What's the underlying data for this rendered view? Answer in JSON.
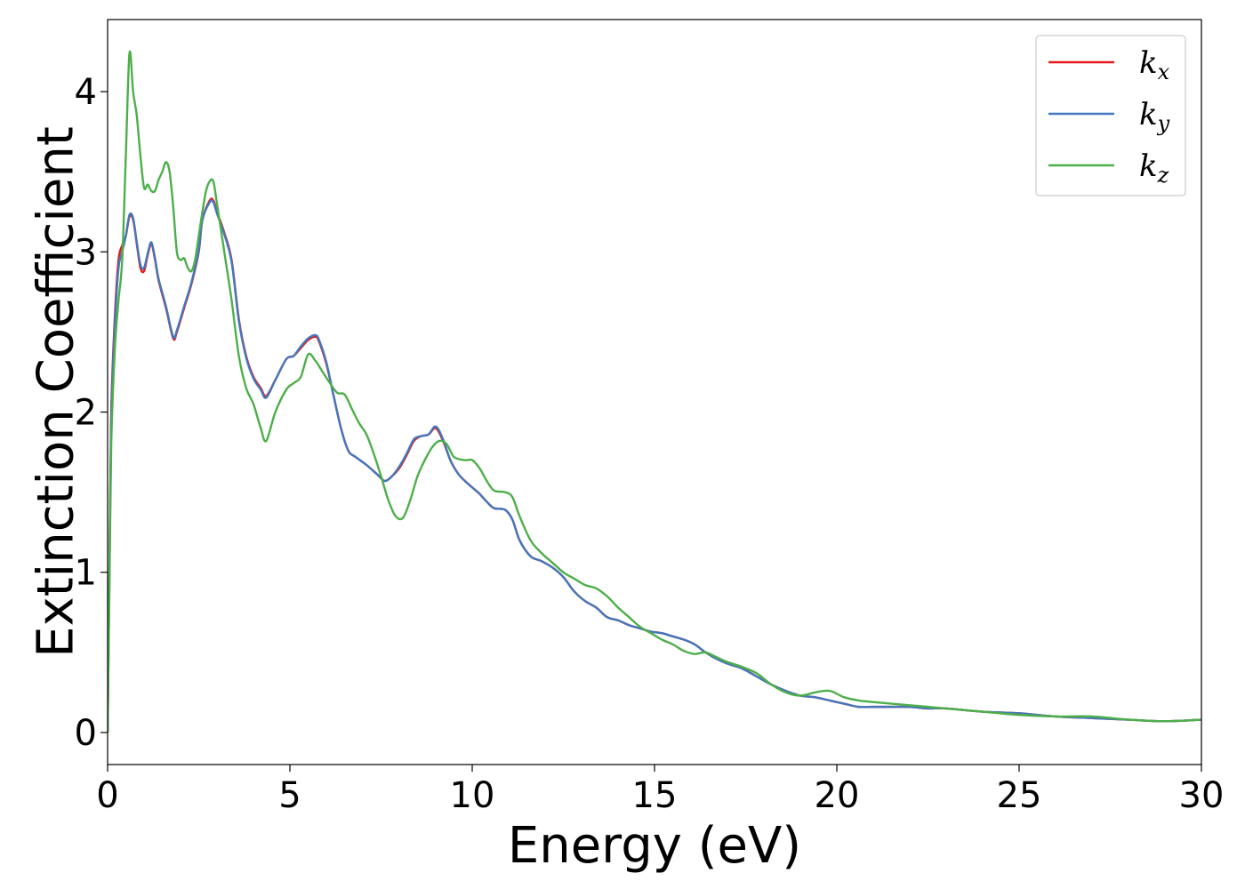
{
  "chart_data": {
    "type": "line",
    "title": "",
    "xlabel": "Energy (eV)",
    "ylabel": "Extinction Coefficient",
    "xlim": [
      0,
      30
    ],
    "ylim": [
      -0.2,
      4.45
    ],
    "xticks": [
      "0",
      "5",
      "10",
      "15",
      "20",
      "25",
      "30"
    ],
    "yticks": [
      "0",
      "1",
      "2",
      "3",
      "4"
    ],
    "grid": false,
    "legend_position": "top-right",
    "series": [
      {
        "name": "k_x",
        "label": {
          "symbol": "k",
          "subscript": "x"
        },
        "color": "#e41a1c",
        "x": [
          0.0,
          0.05,
          0.1,
          0.2,
          0.3,
          0.4,
          0.5,
          0.6,
          0.7,
          0.8,
          0.9,
          1.0,
          1.1,
          1.2,
          1.3,
          1.4,
          1.6,
          1.8,
          1.9,
          2.1,
          2.3,
          2.5,
          2.6,
          2.8,
          2.9,
          3.0,
          3.2,
          3.4,
          3.6,
          3.8,
          4.0,
          4.2,
          4.35,
          4.6,
          4.9,
          5.1,
          5.3,
          5.5,
          5.7,
          5.8,
          6.0,
          6.2,
          6.4,
          6.6,
          6.8,
          7.1,
          7.4,
          7.6,
          7.8,
          8.0,
          8.2,
          8.4,
          8.6,
          8.8,
          9.0,
          9.2,
          9.4,
          9.6,
          9.8,
          10.0,
          10.2,
          10.4,
          10.6,
          10.9,
          11.1,
          11.3,
          11.6,
          11.9,
          12.2,
          12.5,
          12.8,
          13.1,
          13.4,
          13.7,
          14.0,
          14.3,
          14.6,
          14.9,
          15.2,
          15.5,
          15.8,
          16.1,
          16.4,
          16.7,
          17.0,
          17.4,
          17.8,
          18.2,
          18.6,
          19.0,
          19.4,
          19.8,
          20.2,
          20.6,
          21.0,
          21.5,
          22.0,
          22.5,
          23.0,
          24.0,
          25.0,
          26.0,
          27.0,
          28.0,
          29.0,
          30.0
        ],
        "y": [
          0.0,
          1.0,
          2.0,
          2.6,
          2.95,
          3.04,
          3.1,
          3.22,
          3.2,
          3.05,
          2.9,
          2.88,
          2.98,
          3.05,
          2.95,
          2.82,
          2.65,
          2.46,
          2.5,
          2.65,
          2.8,
          3.0,
          3.2,
          3.32,
          3.32,
          3.25,
          3.12,
          2.95,
          2.58,
          2.35,
          2.22,
          2.15,
          2.1,
          2.2,
          2.33,
          2.35,
          2.4,
          2.45,
          2.47,
          2.44,
          2.3,
          2.1,
          1.9,
          1.76,
          1.72,
          1.67,
          1.61,
          1.57,
          1.6,
          1.65,
          1.73,
          1.82,
          1.85,
          1.86,
          1.9,
          1.82,
          1.7,
          1.62,
          1.57,
          1.53,
          1.49,
          1.44,
          1.4,
          1.39,
          1.33,
          1.2,
          1.1,
          1.07,
          1.03,
          0.97,
          0.88,
          0.82,
          0.78,
          0.72,
          0.7,
          0.67,
          0.65,
          0.63,
          0.62,
          0.6,
          0.58,
          0.55,
          0.5,
          0.46,
          0.43,
          0.4,
          0.35,
          0.3,
          0.26,
          0.23,
          0.22,
          0.2,
          0.18,
          0.16,
          0.16,
          0.16,
          0.16,
          0.15,
          0.15,
          0.13,
          0.12,
          0.1,
          0.09,
          0.08,
          0.07,
          0.08
        ]
      },
      {
        "name": "k_y",
        "label": {
          "symbol": "k",
          "subscript": "y"
        },
        "color": "#4477bb",
        "x": [
          0.0,
          0.05,
          0.1,
          0.2,
          0.3,
          0.4,
          0.5,
          0.6,
          0.7,
          0.8,
          0.9,
          1.0,
          1.1,
          1.2,
          1.3,
          1.4,
          1.6,
          1.8,
          1.9,
          2.1,
          2.3,
          2.5,
          2.6,
          2.8,
          2.9,
          3.0,
          3.2,
          3.4,
          3.6,
          3.8,
          4.0,
          4.2,
          4.35,
          4.6,
          4.9,
          5.1,
          5.3,
          5.5,
          5.7,
          5.8,
          6.0,
          6.2,
          6.4,
          6.6,
          6.8,
          7.1,
          7.4,
          7.6,
          7.8,
          8.0,
          8.2,
          8.4,
          8.6,
          8.8,
          9.0,
          9.2,
          9.4,
          9.6,
          9.8,
          10.0,
          10.2,
          10.4,
          10.6,
          10.9,
          11.1,
          11.3,
          11.6,
          11.9,
          12.2,
          12.5,
          12.8,
          13.1,
          13.4,
          13.7,
          14.0,
          14.3,
          14.6,
          14.9,
          15.2,
          15.5,
          15.8,
          16.1,
          16.4,
          16.7,
          17.0,
          17.4,
          17.8,
          18.2,
          18.6,
          19.0,
          19.4,
          19.8,
          20.2,
          20.6,
          21.0,
          21.5,
          22.0,
          22.5,
          23.0,
          24.0,
          25.0,
          26.0,
          27.0,
          28.0,
          29.0,
          30.0
        ],
        "y": [
          0.0,
          1.0,
          1.95,
          2.55,
          2.9,
          3.0,
          3.1,
          3.23,
          3.21,
          3.06,
          2.92,
          2.9,
          2.99,
          3.06,
          2.96,
          2.83,
          2.66,
          2.47,
          2.51,
          2.66,
          2.81,
          3.01,
          3.2,
          3.31,
          3.31,
          3.24,
          3.11,
          2.94,
          2.57,
          2.34,
          2.21,
          2.14,
          2.09,
          2.2,
          2.33,
          2.35,
          2.41,
          2.46,
          2.48,
          2.45,
          2.31,
          2.1,
          1.9,
          1.76,
          1.72,
          1.67,
          1.61,
          1.57,
          1.6,
          1.66,
          1.74,
          1.83,
          1.85,
          1.86,
          1.91,
          1.83,
          1.7,
          1.62,
          1.57,
          1.53,
          1.49,
          1.44,
          1.4,
          1.39,
          1.33,
          1.2,
          1.1,
          1.07,
          1.03,
          0.97,
          0.88,
          0.82,
          0.78,
          0.72,
          0.7,
          0.67,
          0.65,
          0.63,
          0.62,
          0.6,
          0.58,
          0.55,
          0.5,
          0.46,
          0.43,
          0.4,
          0.35,
          0.3,
          0.26,
          0.23,
          0.22,
          0.2,
          0.18,
          0.16,
          0.16,
          0.16,
          0.16,
          0.15,
          0.15,
          0.13,
          0.12,
          0.1,
          0.09,
          0.08,
          0.07,
          0.08
        ]
      },
      {
        "name": "k_z",
        "label": {
          "symbol": "k",
          "subscript": "z"
        },
        "color": "#4daf4a",
        "x": [
          0.0,
          0.05,
          0.1,
          0.2,
          0.3,
          0.4,
          0.5,
          0.6,
          0.7,
          0.8,
          0.9,
          1.0,
          1.1,
          1.2,
          1.3,
          1.4,
          1.5,
          1.6,
          1.7,
          1.8,
          1.9,
          2.0,
          2.1,
          2.2,
          2.3,
          2.4,
          2.5,
          2.6,
          2.7,
          2.8,
          2.9,
          3.0,
          3.2,
          3.4,
          3.6,
          3.8,
          4.0,
          4.2,
          4.35,
          4.6,
          4.9,
          5.1,
          5.3,
          5.5,
          5.7,
          5.9,
          6.1,
          6.3,
          6.5,
          6.7,
          6.9,
          7.1,
          7.3,
          7.5,
          7.7,
          7.9,
          8.1,
          8.3,
          8.5,
          8.7,
          8.9,
          9.1,
          9.3,
          9.5,
          9.8,
          10.0,
          10.2,
          10.4,
          10.6,
          10.9,
          11.1,
          11.3,
          11.6,
          11.9,
          12.2,
          12.5,
          12.8,
          13.1,
          13.4,
          13.7,
          14.0,
          14.3,
          14.6,
          14.9,
          15.2,
          15.5,
          15.8,
          16.1,
          16.4,
          16.7,
          17.0,
          17.4,
          17.8,
          18.2,
          18.6,
          19.0,
          19.4,
          19.8,
          20.2,
          20.6,
          21.0,
          21.5,
          22.0,
          22.5,
          23.0,
          24.0,
          25.0,
          26.0,
          27.0,
          28.0,
          29.0,
          30.0
        ],
        "y": [
          0.0,
          0.9,
          1.8,
          2.4,
          2.7,
          2.95,
          3.6,
          4.24,
          4.0,
          3.85,
          3.6,
          3.4,
          3.42,
          3.38,
          3.38,
          3.45,
          3.5,
          3.56,
          3.5,
          3.28,
          3.0,
          2.95,
          2.96,
          2.9,
          2.88,
          2.95,
          3.1,
          3.25,
          3.38,
          3.44,
          3.44,
          3.3,
          3.0,
          2.7,
          2.35,
          2.15,
          2.05,
          1.9,
          1.82,
          2.0,
          2.14,
          2.18,
          2.22,
          2.36,
          2.32,
          2.25,
          2.18,
          2.12,
          2.11,
          2.02,
          1.93,
          1.86,
          1.74,
          1.6,
          1.45,
          1.35,
          1.34,
          1.45,
          1.6,
          1.7,
          1.78,
          1.82,
          1.8,
          1.72,
          1.7,
          1.7,
          1.65,
          1.57,
          1.51,
          1.5,
          1.47,
          1.35,
          1.2,
          1.12,
          1.06,
          1.0,
          0.96,
          0.92,
          0.9,
          0.85,
          0.78,
          0.72,
          0.66,
          0.62,
          0.58,
          0.55,
          0.51,
          0.49,
          0.5,
          0.47,
          0.44,
          0.41,
          0.37,
          0.3,
          0.25,
          0.23,
          0.25,
          0.26,
          0.22,
          0.2,
          0.19,
          0.18,
          0.17,
          0.16,
          0.15,
          0.13,
          0.11,
          0.1,
          0.1,
          0.08,
          0.07,
          0.08
        ]
      }
    ]
  }
}
